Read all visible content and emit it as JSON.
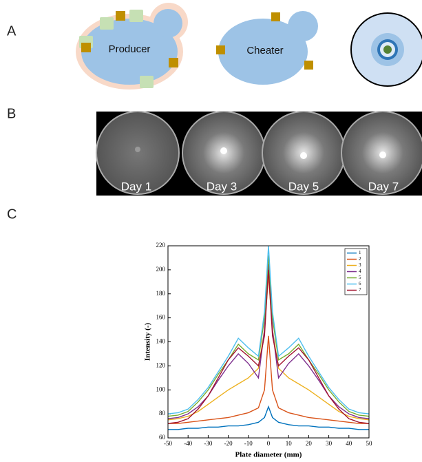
{
  "panels": {
    "A": {
      "label": "A",
      "cells": [
        "Producer",
        "Cheater"
      ]
    },
    "B": {
      "label": "B",
      "days": [
        "Day 1",
        "Day 3",
        "Day 5",
        "Day 7"
      ]
    },
    "C": {
      "label": "C"
    }
  },
  "chart_data": {
    "type": "line",
    "xlabel": "Plate diameter (mm)",
    "ylabel": "Intensity (-)",
    "x": [
      -50,
      -45,
      -40,
      -35,
      -30,
      -25,
      -20,
      -15,
      -10,
      -5,
      -2,
      0,
      2,
      5,
      10,
      15,
      20,
      25,
      30,
      35,
      40,
      45,
      50
    ],
    "series": [
      {
        "name": "1",
        "color": "#0072bd",
        "values": [
          67,
          67,
          68,
          68,
          69,
          69,
          70,
          70,
          71,
          73,
          77,
          86,
          77,
          73,
          71,
          70,
          70,
          69,
          69,
          68,
          68,
          67,
          67
        ]
      },
      {
        "name": "2",
        "color": "#d95319",
        "values": [
          72,
          72,
          73,
          74,
          75,
          76,
          77,
          79,
          81,
          85,
          100,
          145,
          100,
          85,
          81,
          79,
          77,
          76,
          75,
          74,
          73,
          72,
          72
        ]
      },
      {
        "name": "3",
        "color": "#edb120",
        "values": [
          75,
          76,
          78,
          82,
          88,
          94,
          100,
          105,
          110,
          118,
          150,
          195,
          150,
          118,
          110,
          105,
          100,
          94,
          88,
          82,
          78,
          76,
          75
        ]
      },
      {
        "name": "4",
        "color": "#7e2f8e",
        "values": [
          76,
          77,
          80,
          86,
          95,
          108,
          120,
          130,
          122,
          110,
          150,
          205,
          150,
          110,
          122,
          130,
          120,
          108,
          95,
          86,
          80,
          77,
          76
        ]
      },
      {
        "name": "5",
        "color": "#77ac30",
        "values": [
          78,
          79,
          82,
          90,
          100,
          113,
          125,
          138,
          130,
          125,
          160,
          212,
          160,
          125,
          130,
          138,
          125,
          113,
          100,
          90,
          82,
          79,
          78
        ]
      },
      {
        "name": "6",
        "color": "#4dbeee",
        "values": [
          80,
          81,
          84,
          92,
          102,
          115,
          128,
          143,
          135,
          128,
          165,
          220,
          165,
          128,
          135,
          143,
          128,
          115,
          102,
          92,
          84,
          81,
          80
        ]
      },
      {
        "name": "7",
        "color": "#a2142f",
        "values": [
          72,
          73,
          76,
          84,
          95,
          110,
          125,
          135,
          128,
          120,
          145,
          200,
          145,
          120,
          128,
          135,
          125,
          110,
          95,
          84,
          76,
          73,
          72
        ]
      }
    ],
    "xlim": [
      -50,
      50
    ],
    "ylim": [
      60,
      220
    ],
    "xticks": [
      -50,
      -40,
      -30,
      -20,
      -10,
      0,
      10,
      20,
      30,
      40,
      50
    ],
    "yticks": [
      60,
      80,
      100,
      120,
      140,
      160,
      180,
      200,
      220
    ],
    "legend": "top-right"
  }
}
